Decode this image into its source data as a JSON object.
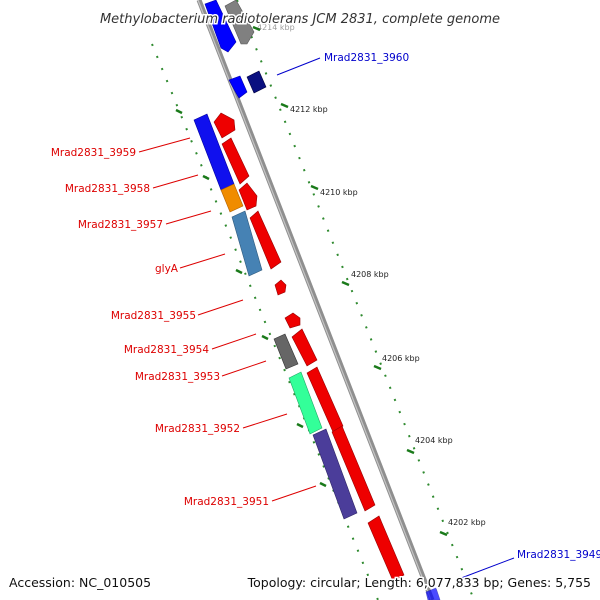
{
  "title": "Methylobacterium radiotolerans JCM 2831, complete genome",
  "accession_text": "Accession: NC_010505",
  "topology_text": "Topology: circular; Length: 6,077,833 bp; Genes: 5,755",
  "colors": {
    "label_red": "#dd0000",
    "label_blue": "#0000cc",
    "backbone": "#888888",
    "tick_green": "#1a7a1a"
  },
  "ticks": [
    {
      "label": "4214 kbp",
      "faded": true
    },
    {
      "label": "4212 kbp"
    },
    {
      "label": "4210 kbp"
    },
    {
      "label": "4208 kbp"
    },
    {
      "label": "4206 kbp"
    },
    {
      "label": "4204 kbp"
    },
    {
      "label": "4202 kbp"
    }
  ],
  "labels": {
    "mrad3960": "Mrad2831_3960",
    "mrad3959": "Mrad2831_3959",
    "mrad3958": "Mrad2831_3958",
    "mrad3957": "Mrad2831_3957",
    "glyA": "glyA",
    "mrad3955": "Mrad2831_3955",
    "mrad3954": "Mrad2831_3954",
    "mrad3953": "Mrad2831_3953",
    "mrad3952": "Mrad2831_3952",
    "mrad3951": "Mrad2831_3951",
    "mrad3949": "Mrad2831_3949"
  }
}
